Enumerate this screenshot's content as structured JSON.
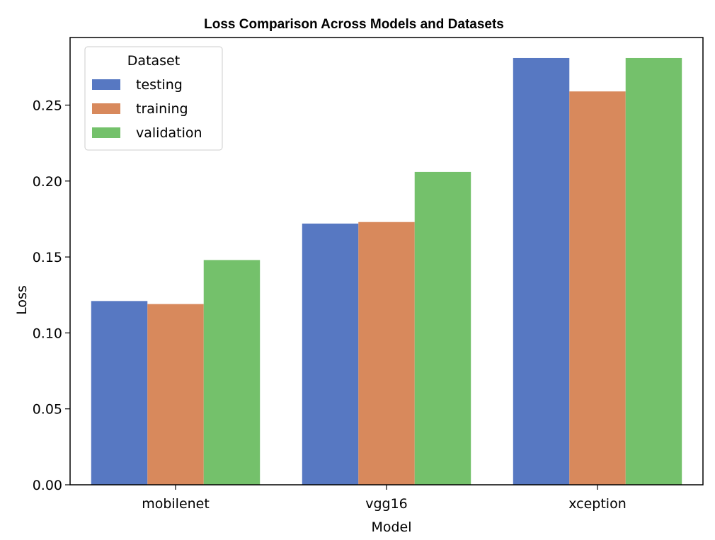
{
  "chart_data": {
    "type": "bar",
    "title": "Loss Comparison Across Models and Datasets",
    "xlabel": "Model",
    "ylabel": "Loss",
    "categories": [
      "mobilenet",
      "vgg16",
      "xception"
    ],
    "series": [
      {
        "name": "testing",
        "values": [
          0.121,
          0.172,
          0.281
        ],
        "color": "#5778c2"
      },
      {
        "name": "training",
        "values": [
          0.119,
          0.173,
          0.259
        ],
        "color": "#d8895c"
      },
      {
        "name": "validation",
        "values": [
          0.148,
          0.206,
          0.281
        ],
        "color": "#74c16b"
      }
    ],
    "ylim": [
      0,
      0.2945
    ],
    "yticks": [
      0.0,
      0.05,
      0.1,
      0.15,
      0.2,
      0.25
    ],
    "ytick_labels": [
      "0.00",
      "0.05",
      "0.10",
      "0.15",
      "0.20",
      "0.25"
    ],
    "grid": false,
    "legend": {
      "title": "Dataset",
      "placement": "top-left"
    }
  }
}
